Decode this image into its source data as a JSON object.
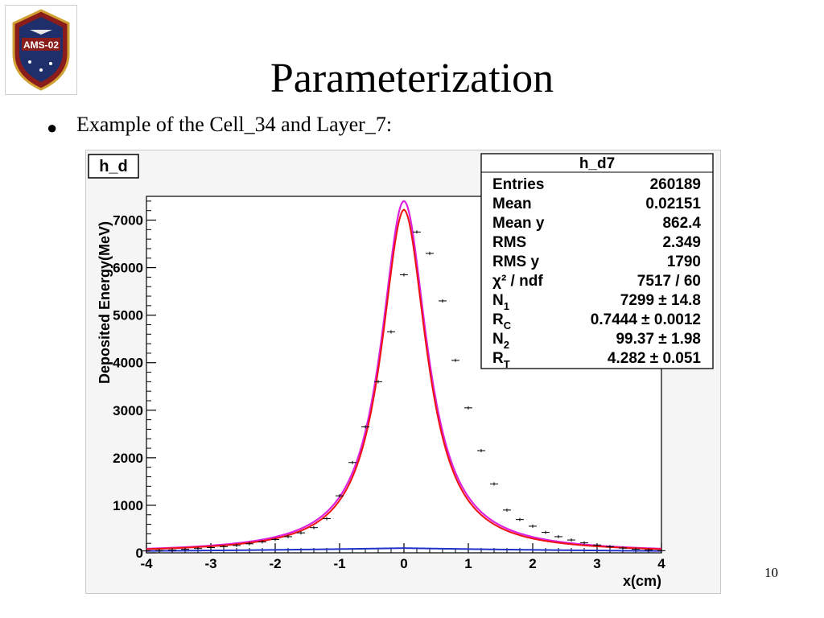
{
  "slide": {
    "title": "Parameterization",
    "bullet": "Example of the Cell_34 and Layer_7:",
    "bullet_marker": "●",
    "page_number": "10",
    "logo_text": "AMS-02"
  },
  "chart_data": {
    "type": "scatter",
    "title": "h_d",
    "xlabel": "x(cm)",
    "ylabel": "Deposited Energy(MeV)",
    "xlim": [
      -4,
      4
    ],
    "ylim": [
      0,
      7500
    ],
    "x_ticks": [
      "-4",
      "-3",
      "-2",
      "-1",
      "0",
      "1",
      "2",
      "3",
      "4"
    ],
    "y_ticks": [
      "0",
      "1000",
      "2000",
      "3000",
      "4000",
      "5000",
      "6000",
      "7000"
    ],
    "y_tick_values": [
      0,
      1000,
      2000,
      3000,
      4000,
      5000,
      6000,
      7000
    ],
    "x_tick_values": [
      -4,
      -3,
      -2,
      -1,
      0,
      1,
      2,
      3,
      4
    ],
    "grid": false,
    "data_points": {
      "x": [
        -4.0,
        -3.8,
        -3.6,
        -3.4,
        -3.2,
        -3.0,
        -2.8,
        -2.6,
        -2.4,
        -2.2,
        -2.0,
        -1.8,
        -1.6,
        -1.4,
        -1.2,
        -1.0,
        -0.8,
        -0.6,
        -0.4,
        -0.2,
        0.0,
        0.2,
        0.4,
        0.6,
        0.8,
        1.0,
        1.2,
        1.4,
        1.6,
        1.8,
        2.0,
        2.2,
        2.4,
        2.6,
        2.8,
        3.0,
        3.2,
        3.4,
        3.6,
        3.8,
        4.0
      ],
      "y": [
        40,
        50,
        60,
        75,
        90,
        110,
        130,
        155,
        190,
        230,
        280,
        340,
        420,
        530,
        720,
        1200,
        1900,
        2650,
        3600,
        4650,
        5850,
        6750,
        6300,
        5300,
        4050,
        3050,
        2150,
        1450,
        900,
        700,
        560,
        430,
        340,
        270,
        210,
        165,
        130,
        100,
        75,
        60,
        45
      ]
    },
    "fit_curve": {
      "function": "N1*exp(-|x|/RC) + N2*exp(-|x|/RT)",
      "N1": 7299,
      "RC": 0.7444,
      "N2": 99.37,
      "RT": 4.282,
      "colors": {
        "total": "#ee1111",
        "envelope": "#dd22dd",
        "tail": "#2233cc"
      }
    },
    "stats_box": {
      "title": "h_d7",
      "rows": [
        {
          "label": "Entries",
          "value": "260189"
        },
        {
          "label": "Mean",
          "value": "0.02151"
        },
        {
          "label": "Mean y",
          "value": "862.4"
        },
        {
          "label": "RMS",
          "value": "2.349"
        },
        {
          "label": "RMS y",
          "value": "1790"
        },
        {
          "label": "χ² / ndf",
          "value": "7517 / 60"
        },
        {
          "label": "N",
          "sub": "1",
          "value": "7299 ± 14.8"
        },
        {
          "label": "R",
          "sub": "C",
          "value": "0.7444 ± 0.0012"
        },
        {
          "label": "N",
          "sub": "2",
          "value": "99.37 ± 1.98"
        },
        {
          "label": "R",
          "sub": "T",
          "value": "4.282 ± 0.051"
        }
      ]
    }
  }
}
